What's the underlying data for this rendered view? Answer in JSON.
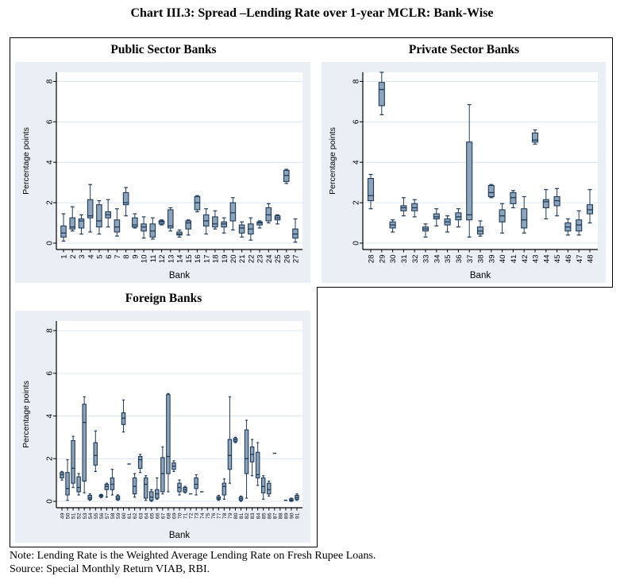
{
  "page_title": "Chart III.3: Spread –Lending Rate over 1-year MCLR: Bank-Wise",
  "notes": {
    "note": "Note: Lending Rate is the Weighted Average Lending Rate on Fresh Rupee Loans.",
    "source": "Source: Special Monthly Return VIAB, RBI."
  },
  "colors": {
    "box_fill": "#8da4bb",
    "box_stroke": "#1e3a5a",
    "chart_bg": "#e9eff5",
    "plot_bg": "#ffffff",
    "grid": "#dce6ef",
    "axis": "#000000"
  },
  "chart_data": [
    {
      "type": "box",
      "title": "Public Sector Banks",
      "xlabel": "Bank",
      "ylabel": "Percentage points",
      "yticks": [
        0,
        2,
        4,
        6,
        8
      ],
      "ylim": [
        0,
        8.45
      ],
      "grid": "on",
      "categories": [
        "1",
        "2",
        "3",
        "4",
        "5",
        "6",
        "7",
        "8",
        "9",
        "10",
        "11",
        "12",
        "13",
        "14",
        "15",
        "16",
        "17",
        "18",
        "19",
        "20",
        "21",
        "22",
        "23",
        "24",
        "25",
        "26",
        "27"
      ],
      "boxes": [
        [
          0.1,
          0.3,
          0.5,
          0.85,
          1.45
        ],
        [
          0.6,
          0.7,
          0.8,
          1.25,
          1.8
        ],
        [
          0.45,
          0.75,
          1.1,
          1.2,
          1.4
        ],
        [
          0.55,
          1.25,
          1.35,
          2.15,
          2.9
        ],
        [
          0.45,
          0.8,
          1.1,
          1.9,
          2.1
        ],
        [
          0.8,
          1.25,
          1.4,
          1.55,
          2.15
        ],
        [
          0.35,
          0.55,
          0.8,
          1.15,
          1.7
        ],
        [
          1.35,
          1.9,
          2.0,
          2.5,
          2.75
        ],
        [
          0.75,
          0.8,
          0.9,
          1.25,
          1.45
        ],
        [
          0.25,
          0.6,
          0.8,
          0.95,
          1.3
        ],
        [
          0.2,
          0.3,
          0.6,
          0.95,
          1.25
        ],
        [
          0.9,
          0.95,
          1.05,
          1.1,
          1.15
        ],
        [
          0.6,
          0.75,
          0.85,
          1.65,
          1.75
        ],
        [
          0.3,
          0.4,
          0.45,
          0.55,
          0.65
        ],
        [
          0.4,
          0.7,
          1.0,
          1.1,
          1.15
        ],
        [
          1.55,
          1.65,
          2.0,
          2.3,
          2.35
        ],
        [
          0.45,
          0.85,
          1.1,
          1.4,
          1.7
        ],
        [
          0.7,
          0.8,
          0.95,
          1.3,
          1.6
        ],
        [
          0.5,
          0.8,
          0.95,
          1.05,
          1.25
        ],
        [
          0.65,
          1.1,
          1.5,
          2.0,
          2.25
        ],
        [
          0.3,
          0.5,
          0.75,
          0.9,
          1.05
        ],
        [
          0.15,
          0.45,
          0.7,
          0.95,
          1.25
        ],
        [
          0.75,
          0.9,
          1.0,
          1.05,
          1.1
        ],
        [
          1.0,
          1.1,
          1.4,
          1.75,
          1.95
        ],
        [
          0.95,
          1.15,
          1.25,
          1.35,
          1.4
        ],
        [
          2.95,
          3.05,
          3.35,
          3.6,
          3.65
        ],
        [
          0.05,
          0.25,
          0.45,
          0.7,
          1.2
        ]
      ]
    },
    {
      "type": "box",
      "title": "Private Sector Banks",
      "xlabel": "Bank",
      "ylabel": "Percentage points",
      "yticks": [
        0,
        2,
        4,
        6,
        8
      ],
      "ylim": [
        0,
        8.45
      ],
      "grid": "on",
      "categories": [
        "28",
        "29",
        "30",
        "31",
        "32",
        "33",
        "34",
        "35",
        "36",
        "37",
        "38",
        "39",
        "40",
        "41",
        "42",
        "43",
        "44",
        "45",
        "46",
        "47",
        "48"
      ],
      "boxes": [
        [
          1.7,
          2.1,
          2.35,
          3.2,
          3.4
        ],
        [
          6.35,
          6.8,
          7.6,
          7.95,
          8.45
        ],
        [
          0.55,
          0.75,
          0.9,
          1.05,
          1.15
        ],
        [
          1.35,
          1.6,
          1.75,
          1.85,
          2.25
        ],
        [
          1.3,
          1.6,
          1.75,
          1.95,
          2.15
        ],
        [
          0.3,
          0.6,
          0.7,
          0.8,
          0.95
        ],
        [
          0.85,
          1.2,
          1.3,
          1.45,
          1.7
        ],
        [
          0.55,
          0.9,
          1.05,
          1.2,
          1.35
        ],
        [
          0.8,
          1.15,
          1.3,
          1.5,
          1.7
        ],
        [
          0.3,
          1.15,
          1.4,
          5.0,
          6.85
        ],
        [
          0.35,
          0.45,
          0.6,
          0.8,
          1.1
        ],
        [
          2.25,
          2.3,
          2.5,
          2.85,
          2.9
        ],
        [
          0.5,
          1.05,
          1.35,
          1.65,
          1.95
        ],
        [
          1.75,
          1.95,
          2.25,
          2.5,
          2.6
        ],
        [
          0.5,
          0.75,
          1.15,
          1.7,
          2.3
        ],
        [
          4.9,
          5.0,
          5.1,
          5.45,
          5.6
        ],
        [
          1.2,
          1.75,
          2.05,
          2.15,
          2.65
        ],
        [
          1.35,
          1.85,
          2.1,
          2.3,
          2.7
        ],
        [
          0.4,
          0.6,
          0.8,
          1.0,
          1.2
        ],
        [
          0.4,
          0.6,
          0.9,
          1.15,
          1.6
        ],
        [
          1.0,
          1.45,
          1.65,
          1.9,
          2.65
        ]
      ]
    },
    {
      "type": "box",
      "title": "Foreign Banks",
      "xlabel": "Bank",
      "ylabel": "Percentage points",
      "yticks": [
        0,
        2,
        4,
        6,
        8
      ],
      "ylim": [
        0,
        8.45
      ],
      "grid": "on",
      "categories": [
        "49",
        "50",
        "51",
        "52",
        "53",
        "54",
        "55",
        "56",
        "57",
        "58",
        "59",
        "60",
        "61",
        "62",
        "63",
        "64",
        "65",
        "66",
        "67",
        "68",
        "69",
        "70",
        "71",
        "72",
        "73",
        "74",
        "75",
        "76",
        "77",
        "78",
        "79",
        "80",
        "81",
        "82",
        "83",
        "84",
        "85",
        "86",
        "87",
        "88",
        "89",
        "90",
        "91"
      ],
      "boxes": [
        [
          1.0,
          1.1,
          1.25,
          1.35,
          1.4
        ],
        [
          0.05,
          0.3,
          0.6,
          1.35,
          1.95
        ],
        [
          0.65,
          0.85,
          1.55,
          2.85,
          3.05
        ],
        [
          0.3,
          0.45,
          0.65,
          1.15,
          1.3
        ],
        [
          0.4,
          0.95,
          3.7,
          4.55,
          4.9
        ],
        [
          0.05,
          0.1,
          0.17,
          0.28,
          0.35
        ],
        [
          1.4,
          1.7,
          2.15,
          2.75,
          3.3
        ],
        [
          0.18,
          0.22,
          0.27,
          0.3,
          0.33
        ],
        [
          0.2,
          0.55,
          0.7,
          0.8,
          0.85
        ],
        [
          0.3,
          0.55,
          0.8,
          1.1,
          1.5
        ],
        [
          0.05,
          0.08,
          0.15,
          0.25,
          0.3
        ],
        [
          3.25,
          3.6,
          3.9,
          4.15,
          4.75
        ],
        [
          1.75
        ],
        [
          0.2,
          0.35,
          0.7,
          1.1,
          1.3
        ],
        [
          1.35,
          1.55,
          1.95,
          2.1,
          2.2
        ],
        [
          0.05,
          0.15,
          0.8,
          1.1,
          1.2
        ],
        [
          0.0,
          0.05,
          0.2,
          0.45,
          0.55
        ],
        [
          0.1,
          0.15,
          0.35,
          0.55,
          1.1
        ],
        [
          0.35,
          0.45,
          1.3,
          2.05,
          2.55
        ],
        [
          0.45,
          1.3,
          2.1,
          5.0,
          5.05
        ],
        [
          1.4,
          1.5,
          1.65,
          1.8,
          1.9
        ],
        [
          0.3,
          0.45,
          0.65,
          0.85,
          1.0
        ],
        [
          0.4,
          0.45,
          0.55,
          0.65,
          0.7
        ],
        [
          0.35
        ],
        [
          0.3,
          0.6,
          0.8,
          1.1,
          1.25
        ],
        [
          0.45
        ],
        null,
        null,
        [
          0.05,
          0.1,
          0.15,
          0.22,
          0.28
        ],
        [
          0.1,
          0.3,
          0.7,
          0.85,
          1.05
        ],
        [
          0.85,
          1.5,
          2.15,
          2.9,
          4.9
        ],
        [
          2.75,
          2.8,
          2.88,
          2.95,
          3.0
        ],
        [
          0.0,
          0.05,
          0.12,
          0.2,
          0.25
        ],
        [
          0.15,
          1.3,
          2.0,
          3.35,
          3.8
        ],
        [
          1.2,
          1.85,
          2.2,
          2.55,
          2.9
        ],
        [
          0.75,
          1.1,
          1.25,
          2.3,
          2.75
        ],
        [
          0.1,
          0.4,
          0.7,
          1.1,
          1.2
        ],
        [
          0.25,
          0.35,
          0.55,
          0.85,
          0.95
        ],
        [
          2.25
        ],
        null,
        [
          0.05
        ],
        [
          0.0,
          0.02,
          0.06,
          0.12,
          0.15
        ],
        [
          0.05,
          0.1,
          0.18,
          0.28,
          0.35
        ]
      ]
    }
  ]
}
